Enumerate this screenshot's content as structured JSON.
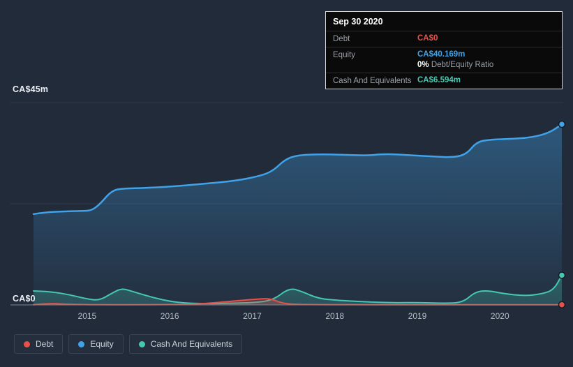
{
  "axes": {
    "y_max_label": "CA$45m",
    "y_min_label": "CA$0"
  },
  "tooltip": {
    "date": "Sep 30 2020",
    "rows": [
      {
        "label": "Debt",
        "value": "CA$0",
        "color": "#e8504a"
      },
      {
        "label": "Equity",
        "value": "CA$40.169m",
        "color": "#40a2e8",
        "sub_bold": "0%",
        "sub_rest": " Debt/Equity Ratio"
      },
      {
        "label": "Cash And Equivalents",
        "value": "CA$6.594m",
        "color": "#45c8b2"
      }
    ]
  },
  "legend": [
    {
      "label": "Debt",
      "color": "#e8504a"
    },
    {
      "label": "Equity",
      "color": "#40a2e8"
    },
    {
      "label": "Cash And Equivalents",
      "color": "#45c8b2"
    }
  ],
  "chart_data": {
    "type": "area",
    "unit": "CA$ millions",
    "xlim": [
      2014.35,
      2020.75
    ],
    "ylim": [
      0,
      45
    ],
    "xticks": [
      2015,
      2016,
      2017,
      2018,
      2019,
      2020
    ],
    "gridlines": [
      0,
      22.5,
      45
    ],
    "y_axis_labels": {
      "max": "CA$45m",
      "min": "CA$0"
    },
    "legend_position": "bottom-left",
    "series": [
      {
        "name": "Debt",
        "color": "#e8504a",
        "x": [
          2014.35,
          2014.55,
          2014.7,
          2014.9,
          2015.2,
          2015.6,
          2016.0,
          2016.3,
          2016.6,
          2016.9,
          2017.1,
          2017.22,
          2017.35,
          2017.5,
          2017.8,
          2018.2,
          2018.8,
          2019.4,
          2020.0,
          2020.4,
          2020.75
        ],
        "values": [
          0.05,
          0.35,
          0.2,
          0.08,
          0.05,
          0.05,
          0.07,
          0.12,
          0.55,
          1.05,
          1.35,
          1.4,
          0.45,
          0.12,
          0.06,
          0.05,
          0.05,
          0.05,
          0.05,
          0.05,
          0.05
        ],
        "end_value_label": "CA$0"
      },
      {
        "name": "Equity",
        "color": "#40a2e8",
        "x": [
          2014.35,
          2014.5,
          2014.7,
          2014.95,
          2015.05,
          2015.15,
          2015.3,
          2015.45,
          2015.7,
          2016.0,
          2016.4,
          2016.8,
          2017.1,
          2017.25,
          2017.4,
          2017.55,
          2017.8,
          2018.1,
          2018.4,
          2018.6,
          2018.9,
          2019.2,
          2019.45,
          2019.6,
          2019.72,
          2019.9,
          2020.15,
          2020.4,
          2020.6,
          2020.75
        ],
        "values": [
          20.2,
          20.6,
          20.8,
          20.9,
          21.0,
          22.3,
          25.5,
          25.9,
          26.0,
          26.3,
          26.9,
          27.6,
          28.7,
          29.8,
          32.4,
          33.3,
          33.5,
          33.4,
          33.2,
          33.6,
          33.3,
          33.0,
          32.8,
          33.6,
          36.3,
          36.8,
          36.9,
          37.3,
          38.3,
          40.169
        ],
        "end_value_label": "CA$40.169m"
      },
      {
        "name": "Cash And Equivalents",
        "color": "#45c8b2",
        "x": [
          2014.35,
          2014.55,
          2014.8,
          2015.0,
          2015.15,
          2015.3,
          2015.42,
          2015.55,
          2015.8,
          2016.05,
          2016.35,
          2016.7,
          2017.0,
          2017.25,
          2017.45,
          2017.6,
          2017.8,
          2018.05,
          2018.35,
          2018.7,
          2019.0,
          2019.3,
          2019.55,
          2019.7,
          2019.85,
          2020.05,
          2020.3,
          2020.5,
          2020.65,
          2020.75
        ],
        "values": [
          3.1,
          3.0,
          2.2,
          1.3,
          1.0,
          2.6,
          3.7,
          3.0,
          1.6,
          0.6,
          0.25,
          0.35,
          0.5,
          1.0,
          3.8,
          3.0,
          1.4,
          1.0,
          0.7,
          0.45,
          0.55,
          0.35,
          0.5,
          2.9,
          3.2,
          2.5,
          2.0,
          2.4,
          3.3,
          6.594
        ],
        "end_value_label": "CA$6.594m"
      }
    ],
    "draw_order": [
      1,
      2,
      0
    ]
  }
}
